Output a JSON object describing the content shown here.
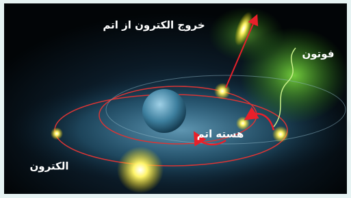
{
  "labels": {
    "electron_exit": "خروج الکترون از اتم",
    "photon": "فوتون",
    "nucleus": "هسته اتم",
    "electron": "الکترون"
  }
}
